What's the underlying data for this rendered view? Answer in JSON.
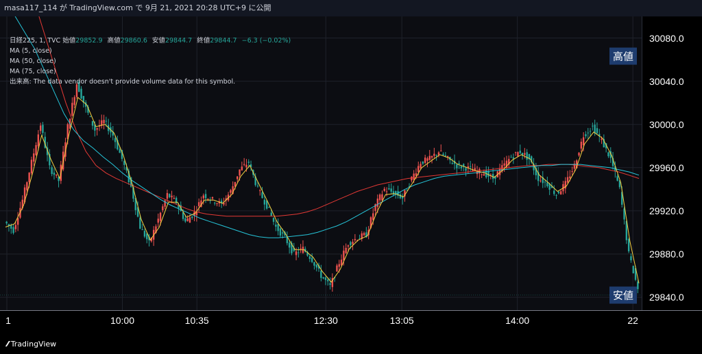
{
  "header": {
    "publish_text": "masa117_114 が TradingView.com で 9月 21, 2021 20:28 UTC+9 に公開"
  },
  "legend": {
    "symbol": "日経225, 1, TVC",
    "open_label": "始値",
    "open": "29852.9",
    "high_label": "高値",
    "high": "29860.6",
    "low_label": "安値",
    "low": "29844.7",
    "close_label": "終値",
    "close": "29844.7",
    "change": "−6.3 (−0.02%)",
    "ma1": "MA (5, close)",
    "ma2": "MA (50, close)",
    "ma3": "MA (75, close)",
    "volume_note": "出来高: The data vendor doesn't provide volume data for this symbol."
  },
  "price_labels": {
    "high": "高値",
    "low": "安値"
  },
  "brand": {
    "name": "TradingView",
    "icon": "tradingview-logo-icon"
  },
  "colors": {
    "background": "#0c0d12",
    "up": "#ef5350",
    "down": "#26a69a",
    "ma5": "#f5d142",
    "ma50": "#26c6da",
    "ma75": "#e53935",
    "marker": "#1e3c6e"
  },
  "chart_data": {
    "type": "candlestick",
    "ylim": [
      29828,
      30100
    ],
    "ytick_labels": [
      "30080.0",
      "30040.0",
      "30000.0",
      "29960.0",
      "29920.0",
      "29880.0",
      "29840.0"
    ],
    "xtick_labels": [
      "1",
      "10:00",
      "10:35",
      "12:30",
      "13:05",
      "14:00",
      "22"
    ],
    "high_marker": 30063,
    "low_marker": 29842,
    "price_series": [
      29910,
      29902,
      29930,
      29965,
      30000,
      29960,
      29948,
      29998,
      30038,
      30015,
      29995,
      30003,
      29990,
      29968,
      29942,
      29905,
      29890,
      29912,
      29935,
      29928,
      29910,
      29918,
      29935,
      29930,
      29926,
      29938,
      29958,
      29965,
      29940,
      29925,
      29905,
      29895,
      29880,
      29885,
      29875,
      29860,
      29850,
      29872,
      29890,
      29895,
      29898,
      29925,
      29940,
      29937,
      29932,
      29950,
      29965,
      29968,
      29975,
      29968,
      29962,
      29960,
      29957,
      29955,
      29950,
      29960,
      29970,
      29975,
      29968,
      29950,
      29945,
      29935,
      29945,
      29962,
      29990,
      29998,
      29985,
      29968,
      29940,
      29880,
      29848
    ],
    "ma5": [
      29905,
      29908,
      29925,
      29955,
      29990,
      29968,
      29950,
      29990,
      30025,
      30018,
      29998,
      30000,
      29992,
      29972,
      29945,
      29912,
      29893,
      29905,
      29928,
      29928,
      29914,
      29918,
      29930,
      29930,
      29927,
      29935,
      29952,
      29962,
      29945,
      29928,
      29910,
      29898,
      29884,
      29884,
      29877,
      29864,
      29854,
      29866,
      29885,
      29893,
      29897,
      29918,
      29935,
      29936,
      29933,
      29946,
      29960,
      29966,
      29972,
      29969,
      29963,
      29960,
      29957,
      29955,
      29951,
      29958,
      29967,
      29972,
      29968,
      29953,
      29946,
      29938,
      29943,
      29958,
      29982,
      29993,
      29987,
      29971,
      29946,
      29892,
      29853
    ],
    "ma50": [
      30110,
      30100,
      30085,
      30070,
      30050,
      30030,
      30010,
      29995,
      29985,
      29978,
      29970,
      29963,
      29955,
      29948,
      29942,
      29936,
      29930,
      29925,
      29921,
      29917,
      29913,
      29910,
      29907,
      29904,
      29901,
      29898,
      29896,
      29895,
      29895,
      29896,
      29897,
      29898,
      29900,
      29903,
      29906,
      29910,
      29915,
      29920,
      29925,
      29930,
      29935,
      29940,
      29944,
      29947,
      29950,
      29952,
      29953,
      29954,
      29955,
      29956,
      29957,
      29958,
      29959,
      29960,
      29961,
      29962,
      29962,
      29963,
      29963,
      29963,
      29962,
      29961,
      29960,
      29958,
      29956,
      29953
    ],
    "ma75": [
      30200,
      30170,
      30140,
      30110,
      30080,
      30050,
      30020,
      29995,
      29975,
      29962,
      29955,
      29950,
      29946,
      29942,
      29938,
      29934,
      29930,
      29926,
      29922,
      29919,
      29917,
      29916,
      29915,
      29915,
      29915,
      29915,
      29915,
      29915,
      29916,
      29917,
      29919,
      29922,
      29926,
      29930,
      29934,
      29938,
      29941,
      29944,
      29946,
      29948,
      29950,
      29951,
      29952,
      29953,
      29954,
      29955,
      29956,
      29957,
      29958,
      29959,
      29960,
      29961,
      29962,
      29962,
      29963,
      29963,
      29963,
      29962,
      29961,
      29960,
      29958,
      29956,
      29953,
      29950
    ]
  }
}
